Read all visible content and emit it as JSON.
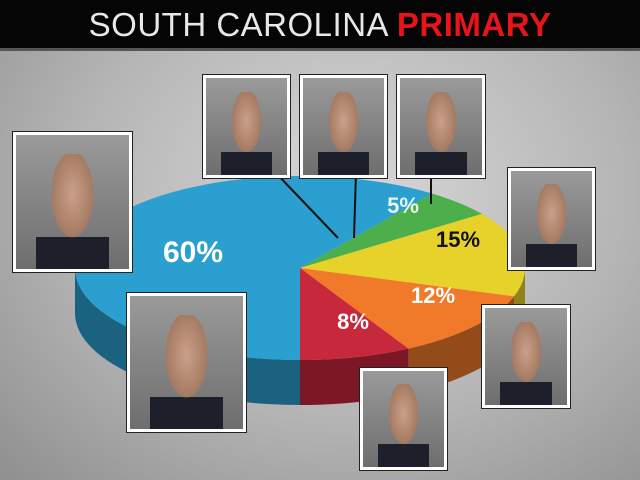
{
  "title": {
    "part1": "SOUTH CAROLINA",
    "part2": "PRIMARY",
    "part2_color": "#e8141a"
  },
  "chart_data": {
    "type": "pie",
    "style": "3d",
    "title": "SOUTH CAROLINA PRIMARY",
    "slices": [
      {
        "value": 60,
        "label": "60%",
        "color": "#2a9fd0",
        "photo": "left"
      },
      {
        "value": 0,
        "label": "",
        "color": "#2a9fd0",
        "photo": "top-1"
      },
      {
        "value": 0,
        "label": "",
        "color": "#2a9fd0",
        "photo": "top-2"
      },
      {
        "value": 5,
        "label": "5%",
        "color": "#4caf4c",
        "photo": "top-3"
      },
      {
        "value": 15,
        "label": "15%",
        "color": "#e6d22a",
        "photo": "right"
      },
      {
        "value": 12,
        "label": "12%",
        "color": "#f07a2a",
        "photo": "bottom-right"
      },
      {
        "value": 8,
        "label": "8%",
        "color": "#c8283c",
        "photo": "bottom"
      }
    ],
    "legend": "none"
  }
}
